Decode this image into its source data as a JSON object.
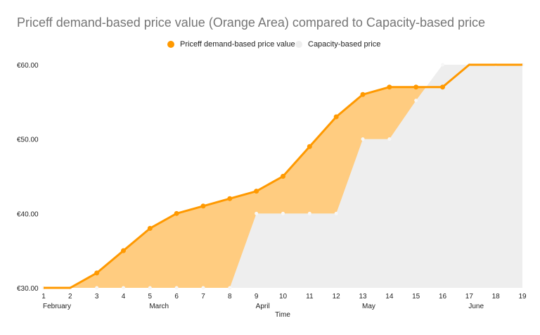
{
  "chart_data": {
    "type": "area",
    "title": "Priceff demand-based price value (Orange Area) compared to Capacity-based price",
    "xlabel": "Time",
    "ylabel": "",
    "x": [
      1,
      2,
      3,
      4,
      5,
      6,
      7,
      8,
      9,
      10,
      11,
      12,
      13,
      14,
      15,
      16,
      17,
      18,
      19
    ],
    "month_labels": [
      {
        "x": 1,
        "label": "February"
      },
      {
        "x": 5,
        "label": "March"
      },
      {
        "x": 9,
        "label": "April"
      },
      {
        "x": 13,
        "label": "May"
      },
      {
        "x": 17,
        "label": "June"
      }
    ],
    "ylim": [
      30,
      60
    ],
    "yticks": [
      30,
      40,
      50,
      60
    ],
    "ytick_labels": [
      "€30.00",
      "€40.00",
      "€50.00",
      "€60.00"
    ],
    "legend_position": "top",
    "grid": false,
    "series": [
      {
        "name": "Priceff demand-based price value",
        "color": "#ff9900",
        "fill": "#ffcc80",
        "values": [
          30,
          30,
          32,
          35,
          38,
          40,
          41,
          42,
          43,
          45,
          49,
          53,
          56,
          57,
          57,
          57,
          60,
          60,
          60
        ]
      },
      {
        "name": "Capacity-based price",
        "color": "#eeeeee",
        "fill": "#eeeeee",
        "values": [
          30,
          30,
          30,
          30,
          30,
          30,
          30,
          30,
          40,
          40,
          40,
          40,
          50,
          50,
          55.2,
          60,
          60,
          60,
          60
        ]
      }
    ]
  }
}
